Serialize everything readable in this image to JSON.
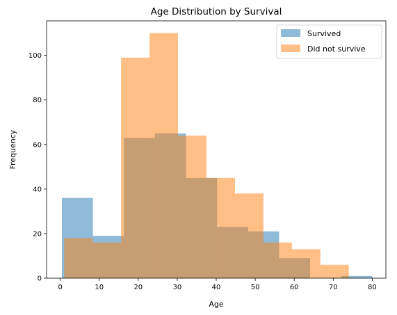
{
  "chart_data": {
    "type": "bar",
    "subtype": "histogram",
    "title": "Age Distribution by Survival",
    "xlabel": "Age",
    "ylabel": "Frequency",
    "xlim": [
      -3.5,
      83.5
    ],
    "ylim": [
      0,
      115.5
    ],
    "xticks": [
      0,
      10,
      20,
      30,
      40,
      50,
      60,
      70,
      80
    ],
    "yticks": [
      0,
      20,
      40,
      60,
      80,
      100
    ],
    "grid": false,
    "legend_position": "top-right",
    "series": [
      {
        "name": "Survived",
        "color": "#1f77b4",
        "opacity": 0.5,
        "bin_edges": [
          0.42,
          8.38,
          16.34,
          24.29,
          32.25,
          40.21,
          48.17,
          56.13,
          64.08,
          72.04,
          80.0
        ],
        "counts": [
          36,
          19,
          63,
          65,
          45,
          23,
          21,
          9,
          0,
          1
        ]
      },
      {
        "name": "Did not survive",
        "color": "#ff7f0e",
        "opacity": 0.5,
        "bin_edges": [
          1.0,
          8.3,
          15.6,
          22.9,
          30.2,
          37.5,
          44.8,
          52.1,
          59.4,
          66.7,
          74.0
        ],
        "counts": [
          18,
          16,
          99,
          110,
          64,
          45,
          38,
          16,
          13,
          6
        ]
      }
    ]
  }
}
